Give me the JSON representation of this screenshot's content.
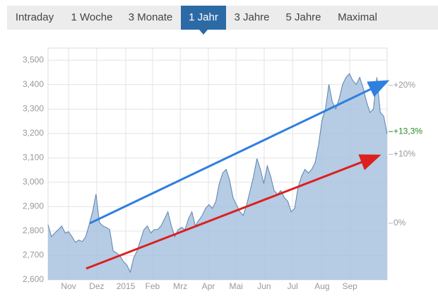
{
  "tabs": {
    "items": [
      "Intraday",
      "1 Woche",
      "3 Monate",
      "1 Jahr",
      "3 Jahre",
      "5 Jahre",
      "Maximal"
    ],
    "active": 3
  },
  "chart_data": {
    "type": "area",
    "values": [
      2826,
      2777,
      2792,
      2806,
      2821,
      2792,
      2797,
      2777,
      2754,
      2763,
      2757,
      2777,
      2826,
      2879,
      2951,
      2835,
      2821,
      2815,
      2806,
      2719,
      2710,
      2699,
      2675,
      2661,
      2632,
      2690,
      2719,
      2763,
      2806,
      2821,
      2792,
      2806,
      2806,
      2821,
      2850,
      2879,
      2821,
      2777,
      2806,
      2815,
      2806,
      2850,
      2879,
      2821,
      2844,
      2864,
      2893,
      2908,
      2893,
      2922,
      2995,
      3038,
      3053,
      3009,
      2937,
      2908,
      2879,
      2864,
      2908,
      2966,
      3024,
      3097,
      3053,
      2995,
      3067,
      3024,
      2966,
      2951,
      2966,
      2937,
      2922,
      2879,
      2893,
      2980,
      3024,
      3053,
      3038,
      3053,
      3082,
      3155,
      3256,
      3300,
      3401,
      3329,
      3300,
      3343,
      3401,
      3430,
      3445,
      3416,
      3401,
      3430,
      3387,
      3329,
      3286,
      3300,
      3430,
      3286,
      3271,
      3198
    ],
    "color": "#a8c3df",
    "line_color": "#5b82ad",
    "xlim": [
      0,
      99
    ],
    "xticks": [
      {
        "value": 6.0,
        "label": "Nov"
      },
      {
        "value": 14.2,
        "label": "Dez"
      },
      {
        "value": 22.7,
        "label": "2015"
      },
      {
        "value": 30.5,
        "label": "Feb"
      },
      {
        "value": 38.6,
        "label": "Mrz"
      },
      {
        "value": 46.8,
        "label": "Apr"
      },
      {
        "value": 54.9,
        "label": "Mai"
      },
      {
        "value": 63.1,
        "label": "Jun"
      },
      {
        "value": 71.4,
        "label": "Jul"
      },
      {
        "value": 80.0,
        "label": "Aug"
      },
      {
        "value": 88.1,
        "label": "Sep"
      }
    ],
    "ylim": [
      2600,
      3550
    ],
    "yticks": [
      {
        "value": 2600,
        "label": "2,600"
      },
      {
        "value": 2700,
        "label": "2,700"
      },
      {
        "value": 2800,
        "label": "2,800"
      },
      {
        "value": 2900,
        "label": "2,900"
      },
      {
        "value": 3000,
        "label": "3,000"
      },
      {
        "value": 3100,
        "label": "3,100"
      },
      {
        "value": 3200,
        "label": "3,200"
      },
      {
        "value": 3300,
        "label": "3,300"
      },
      {
        "value": 3400,
        "label": "3,400"
      },
      {
        "value": 3500,
        "label": "3,500"
      }
    ],
    "y2lim": [
      -8.2,
      25.4
    ],
    "y2ticks": [
      {
        "value": 0,
        "label": "0%"
      },
      {
        "value": 10,
        "label": "+10%"
      },
      {
        "value": 20,
        "label": "+20%"
      }
    ],
    "last_value_label": {
      "value": 13.3,
      "label": "+13,3%",
      "color": "#2a8a2a"
    },
    "grid": true
  }
}
